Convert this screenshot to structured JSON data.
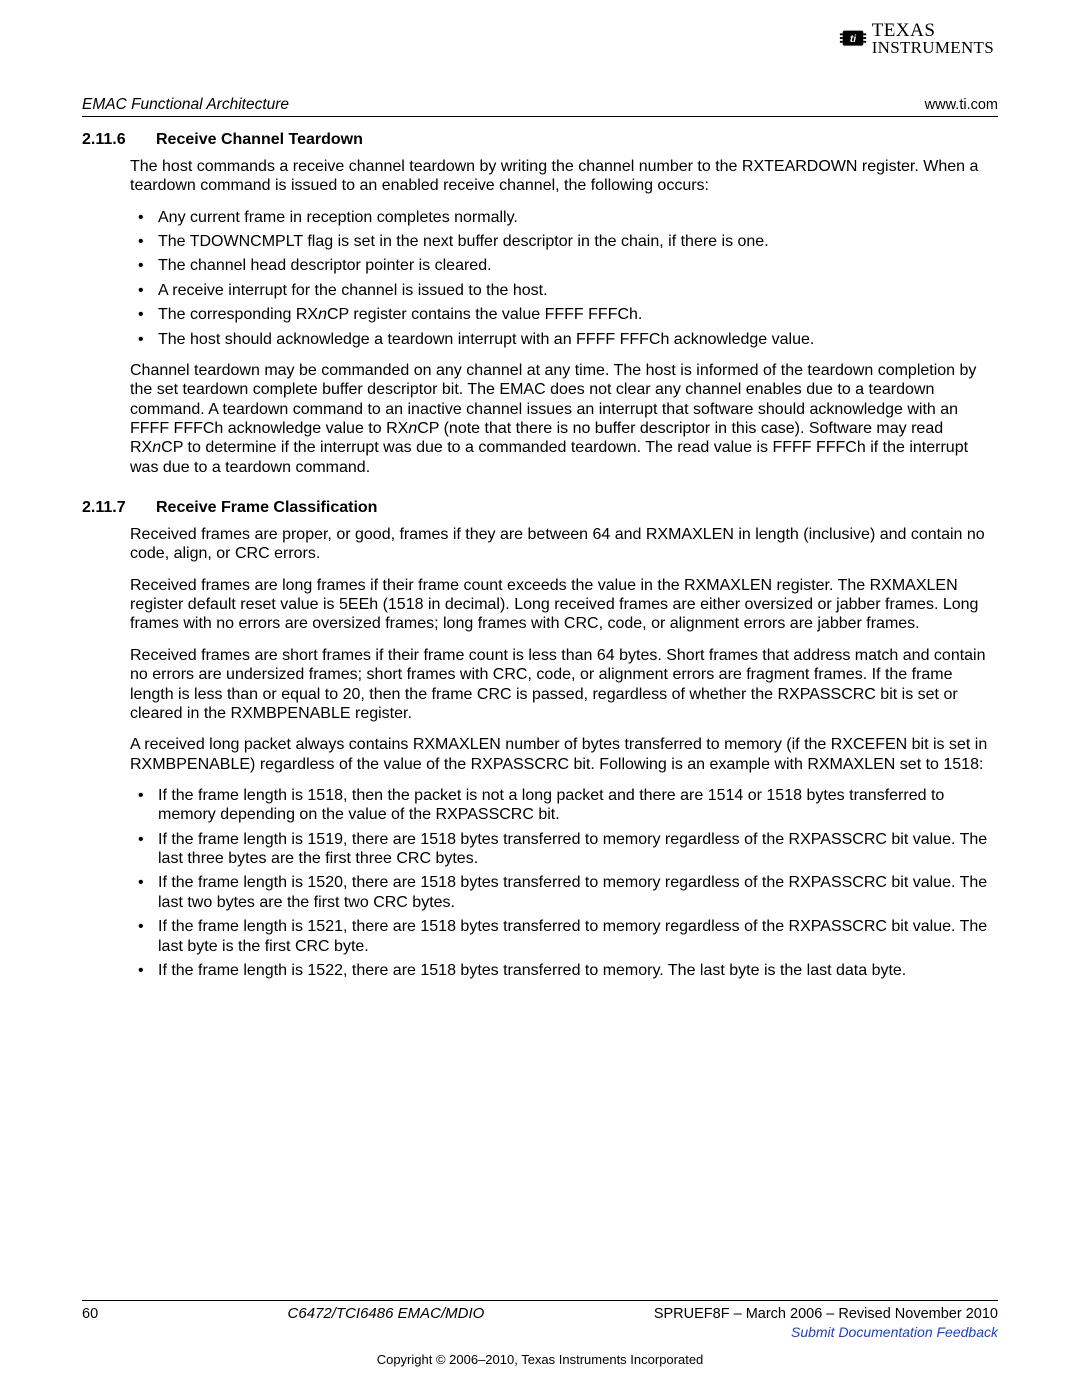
{
  "header": {
    "section_title": "EMAC Functional Architecture",
    "site": "www.ti.com",
    "logo_line1": "TEXAS",
    "logo_line2": "INSTRUMENTS"
  },
  "sections": [
    {
      "number": "2.11.6",
      "title": "Receive Channel Teardown",
      "paras_before": [
        "The host commands a receive channel teardown by writing the channel number to the RXTEARDOWN register. When a teardown command is issued to an enabled receive channel, the following occurs:"
      ],
      "bullets": [
        [
          {
            "t": "Any current frame in reception completes normally."
          }
        ],
        [
          {
            "t": "The TDOWNCMPLT flag is set in the next buffer descriptor in the chain, if there is one."
          }
        ],
        [
          {
            "t": "The channel head descriptor pointer is cleared."
          }
        ],
        [
          {
            "t": "A receive interrupt for the channel is issued to the host."
          }
        ],
        [
          {
            "t": "The corresponding RX"
          },
          {
            "t": "n",
            "i": true
          },
          {
            "t": "CP register contains the value FFFF FFFCh."
          }
        ],
        [
          {
            "t": "The host should acknowledge a teardown interrupt with an FFFF FFFCh acknowledge value."
          }
        ]
      ],
      "paras_after": [
        [
          {
            "t": "Channel teardown may be commanded on any channel at any time. The host is informed of the teardown completion by the set teardown complete buffer descriptor bit. The EMAC does not clear any channel enables due to a teardown command. A teardown command to an inactive channel issues an interrupt that software should acknowledge with an FFFF FFFCh acknowledge value to RX"
          },
          {
            "t": "n",
            "i": true
          },
          {
            "t": "CP (note that there is no buffer descriptor in this case). Software may read RX"
          },
          {
            "t": "n",
            "i": true
          },
          {
            "t": "CP to determine if the interrupt was due to a commanded teardown. The read value is FFFF FFFCh if the interrupt was due to a teardown command."
          }
        ]
      ]
    },
    {
      "number": "2.11.7",
      "title": "Receive Frame Classification",
      "paras_before": [
        "Received frames are proper, or good, frames if they are between 64 and RXMAXLEN in length (inclusive) and contain no code, align, or CRC errors.",
        "Received frames are long frames if their frame count exceeds the value in the RXMAXLEN register. The RXMAXLEN register default reset value is 5EEh (1518 in decimal). Long received frames are either oversized or jabber frames. Long frames with no errors are oversized frames; long frames with CRC, code, or alignment errors are jabber frames.",
        "Received frames are short frames if their frame count is less than 64 bytes. Short frames that address match and contain no errors are undersized frames; short frames with CRC, code, or alignment errors are fragment frames. If the frame length is less than or equal to 20, then the frame CRC is passed, regardless of whether the RXPASSCRC bit is set or cleared in the RXMBPENABLE register.",
        "A received long packet always contains RXMAXLEN number of bytes transferred to memory (if the RXCEFEN bit is set in RXMBPENABLE) regardless of the value of the RXPASSCRC bit. Following is an example with RXMAXLEN set to 1518:"
      ],
      "bullets": [
        [
          {
            "t": "If the frame length is 1518, then the packet is not a long packet and there are 1514 or 1518 bytes transferred to memory depending on the value of the RXPASSCRC bit."
          }
        ],
        [
          {
            "t": "If the frame length is 1519, there are 1518 bytes transferred to memory regardless of the RXPASSCRC bit value. The last three bytes are the first three CRC bytes."
          }
        ],
        [
          {
            "t": "If the frame length is 1520, there are 1518 bytes transferred to memory regardless of the RXPASSCRC bit value. The last two bytes are the first two CRC bytes."
          }
        ],
        [
          {
            "t": "If the frame length is 1521, there are 1518 bytes transferred to memory regardless of the RXPASSCRC bit value. The last byte is the first CRC byte."
          }
        ],
        [
          {
            "t": "If the frame length is 1522, there are 1518 bytes transferred to memory. The last byte is the last data byte."
          }
        ]
      ],
      "paras_after": []
    }
  ],
  "footer": {
    "page_number": "60",
    "doc_title": "C6472/TCI6486 EMAC/MDIO",
    "lit_number_date": "SPRUEF8F – March 2006 – Revised November 2010",
    "feedback_link_text": "Submit Documentation Feedback",
    "copyright": "Copyright © 2006–2010, Texas Instruments Incorporated"
  }
}
